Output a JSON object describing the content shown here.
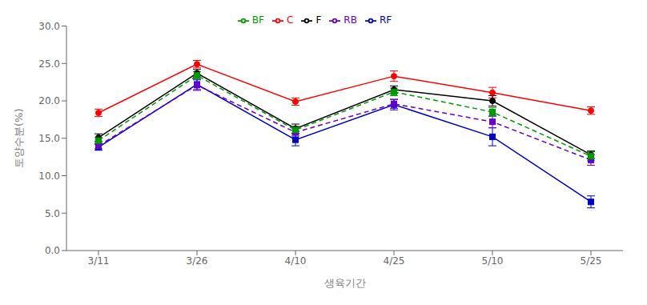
{
  "chart_data": {
    "type": "line",
    "xlabel": "생육기간",
    "ylabel": "토양수분(%)",
    "categories": [
      "3/11",
      "3/26",
      "4/10",
      "4/25",
      "5/10",
      "5/25"
    ],
    "series": [
      {
        "name": "C",
        "color": "#FF0000",
        "line_style": "solid",
        "marker": "circle",
        "values": [
          18.4,
          24.9,
          19.9,
          23.3,
          21.1,
          18.7
        ],
        "errors": [
          0.5,
          0.5,
          0.5,
          0.7,
          0.7,
          0.5
        ]
      },
      {
        "name": "RF",
        "color": "#0000CC",
        "line_style": "solid",
        "marker": "square",
        "values": [
          13.8,
          22.2,
          14.8,
          19.5,
          15.2,
          6.5
        ],
        "errors": [
          0.4,
          0.7,
          0.8,
          0.7,
          1.2,
          0.8
        ]
      },
      {
        "name": "RB",
        "color": "#6600CC",
        "line_style": "dashed",
        "marker": "square",
        "values": [
          14.0,
          22.1,
          15.8,
          19.6,
          17.2,
          12.1
        ],
        "errors": [
          0.4,
          0.7,
          0.5,
          0.6,
          0.8,
          0.7
        ]
      },
      {
        "name": "F",
        "color": "#000000",
        "line_style": "solid",
        "marker": "circle",
        "values": [
          15.1,
          23.7,
          16.3,
          21.5,
          20.0,
          12.8
        ],
        "errors": [
          0.5,
          0.5,
          0.6,
          0.5,
          0.7,
          0.5
        ]
      },
      {
        "name": "BF",
        "color": "#009900",
        "line_style": "dashed",
        "marker": "square",
        "values": [
          14.7,
          23.4,
          16.1,
          21.2,
          18.5,
          12.6
        ],
        "errors": [
          0.4,
          0.5,
          0.5,
          0.5,
          0.6,
          0.6
        ]
      }
    ],
    "ylim": [
      0.0,
      30.0
    ],
    "yticks": [
      {
        "value": 0,
        "label": "0.0"
      },
      {
        "value": 5,
        "label": "5.0"
      },
      {
        "value": 10,
        "label": "10.0"
      },
      {
        "value": 15,
        "label": "15.0"
      },
      {
        "value": 20,
        "label": "20.0"
      },
      {
        "value": 25,
        "label": "25.0"
      },
      {
        "value": 30,
        "label": "30.0"
      }
    ],
    "grid": false,
    "legend": "top"
  }
}
